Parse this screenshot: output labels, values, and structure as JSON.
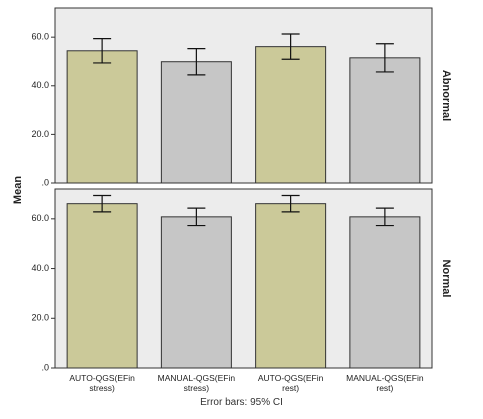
{
  "chart_data": {
    "type": "bar",
    "ylabel": "Mean",
    "note": "Error bars: 95% CI",
    "categories": [
      "AUTO-QGS(EFin stress)",
      "MANUAL-QGS(EFin stress)",
      "AUTO-QGS(EFin rest)",
      "MANUAL-QGS(EFin rest)"
    ],
    "colors": [
      "#cbc999",
      "#c6c6c6",
      "#cbc999",
      "#c6c6c6"
    ],
    "ylim": [
      0,
      72
    ],
    "yticks": [
      {
        "value": 0,
        "label": ".0"
      },
      {
        "value": 20,
        "label": "20.0"
      },
      {
        "value": 40,
        "label": "40.0"
      },
      {
        "value": 60,
        "label": "60.0"
      }
    ],
    "panels": [
      {
        "name": "Abnormal",
        "values": [
          54.4,
          49.9,
          56.1,
          51.5
        ],
        "errors": [
          5.0,
          5.4,
          5.2,
          5.8
        ]
      },
      {
        "name": "Normal",
        "values": [
          66.1,
          60.8,
          66.1,
          60.8
        ],
        "errors": [
          3.3,
          3.5,
          3.3,
          3.5
        ]
      }
    ]
  }
}
